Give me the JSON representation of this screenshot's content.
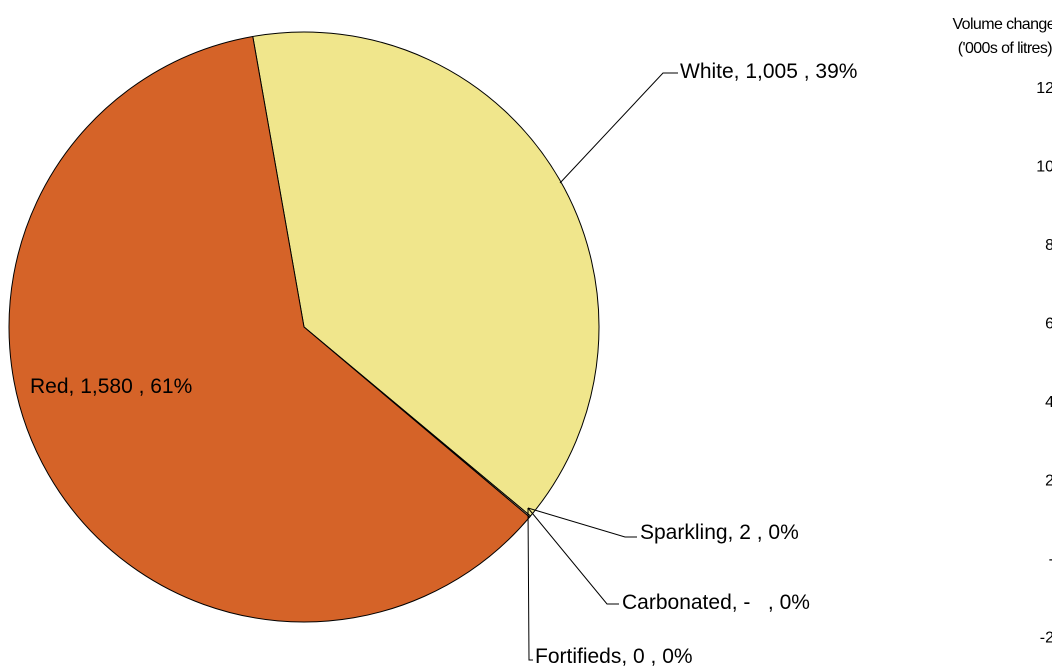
{
  "chart_data": [
    {
      "type": "pie",
      "slices": [
        {
          "name": "White",
          "value": 1005,
          "value_label": "1,005",
          "percent_label": "39%",
          "color": "#f0e68c"
        },
        {
          "name": "Sparkling",
          "value": 2,
          "value_label": "2",
          "percent_label": "0%",
          "color": "#f5deb3"
        },
        {
          "name": "Carbonated",
          "value": 0,
          "value_label": "-",
          "percent_label": "0%",
          "color": "#ffffff"
        },
        {
          "name": "Fortifieds",
          "value": 0,
          "value_label": "0",
          "percent_label": "0%",
          "color": "#8b4513"
        },
        {
          "name": "Red",
          "value": 1580,
          "value_label": "1,580",
          "percent_label": "61%",
          "color": "#d56328"
        }
      ],
      "data_labels": {
        "white": "White, 1,005 , 39%",
        "sparkling": "Sparkling, 2 , 0%",
        "carbonated": "Carbonated, -   , 0%",
        "fortifieds": "Fortifieds, 0 , 0%",
        "red": "Red, 1,580 , 61%"
      }
    },
    {
      "type": "bar",
      "note": "partially visible chart cut off at right edge",
      "ylabel_line1": "Volume change",
      "ylabel_line2": "('000s of litres)",
      "y_ticks": [
        "12",
        "10",
        "8",
        "6",
        "4",
        "2",
        "-",
        "-2"
      ]
    }
  ]
}
